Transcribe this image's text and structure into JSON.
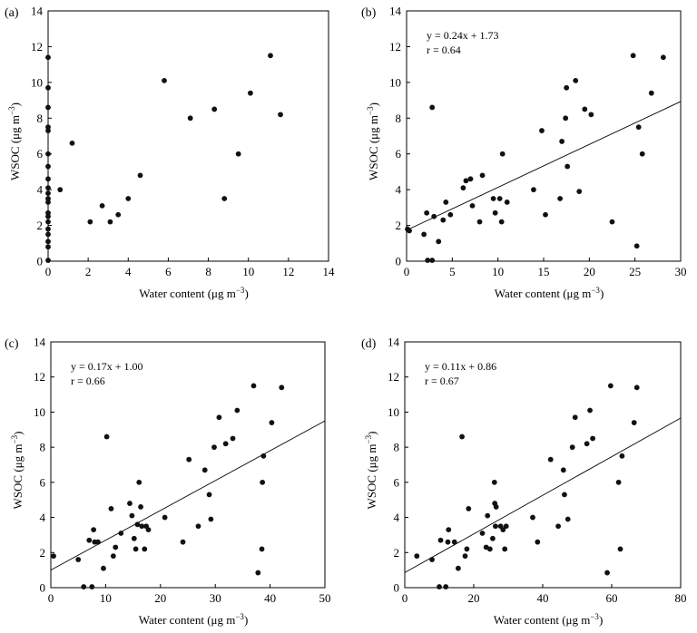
{
  "chart_data": [
    {
      "panel_label": "(a)",
      "type": "scatter",
      "xlabel": "Water content (μg m⁻³)",
      "ylabel": "WSOC (μg m⁻³)",
      "xlim": [
        0,
        14
      ],
      "ylim": [
        0,
        14
      ],
      "xticks": [
        0,
        2,
        4,
        6,
        8,
        10,
        12,
        14
      ],
      "yticks": [
        0,
        2,
        4,
        6,
        8,
        10,
        12,
        14
      ],
      "annotation": [],
      "regression": null,
      "points": [
        [
          0,
          11.4
        ],
        [
          0,
          9.7
        ],
        [
          0,
          8.6
        ],
        [
          0,
          7.5
        ],
        [
          0,
          7.3
        ],
        [
          0,
          6.0
        ],
        [
          0,
          5.3
        ],
        [
          0,
          4.6
        ],
        [
          0,
          4.1
        ],
        [
          0,
          3.8
        ],
        [
          0,
          3.5
        ],
        [
          0,
          3.3
        ],
        [
          0,
          2.7
        ],
        [
          0,
          2.5
        ],
        [
          0,
          2.2
        ],
        [
          0,
          1.8
        ],
        [
          0,
          1.5
        ],
        [
          0,
          1.1
        ],
        [
          0,
          0.8
        ],
        [
          0,
          0.05
        ],
        [
          0.6,
          4.0
        ],
        [
          1.2,
          6.6
        ],
        [
          2.1,
          2.2
        ],
        [
          2.7,
          3.1
        ],
        [
          3.1,
          2.2
        ],
        [
          3.5,
          2.6
        ],
        [
          4.0,
          3.5
        ],
        [
          4.6,
          4.8
        ],
        [
          5.8,
          10.1
        ],
        [
          7.1,
          8.0
        ],
        [
          8.3,
          8.5
        ],
        [
          8.8,
          3.5
        ],
        [
          9.5,
          6.0
        ],
        [
          10.1,
          9.4
        ],
        [
          11.1,
          11.5
        ],
        [
          11.6,
          8.2
        ]
      ]
    },
    {
      "panel_label": "(b)",
      "type": "scatter",
      "xlabel": "Water content (μg m⁻³)",
      "ylabel": "WSOC (μg m⁻³)",
      "xlim": [
        0,
        30
      ],
      "ylim": [
        0,
        14
      ],
      "xticks": [
        0,
        5,
        10,
        15,
        20,
        25,
        30
      ],
      "yticks": [
        0,
        2,
        4,
        6,
        8,
        10,
        12,
        14
      ],
      "annotation": [
        "y = 0.24x + 1.73",
        "r = 0.64"
      ],
      "regression": {
        "slope": 0.24,
        "intercept": 1.73
      },
      "points": [
        [
          0.1,
          1.8
        ],
        [
          0.3,
          1.7
        ],
        [
          1.9,
          1.5
        ],
        [
          2.2,
          2.7
        ],
        [
          2.3,
          0.05
        ],
        [
          2.8,
          0.05
        ],
        [
          2.8,
          8.6
        ],
        [
          3.0,
          2.5
        ],
        [
          3.5,
          1.1
        ],
        [
          4.0,
          2.3
        ],
        [
          4.3,
          3.3
        ],
        [
          4.8,
          2.6
        ],
        [
          6.2,
          4.1
        ],
        [
          6.5,
          4.5
        ],
        [
          7.0,
          4.6
        ],
        [
          7.2,
          3.1
        ],
        [
          8.0,
          2.2
        ],
        [
          8.3,
          4.8
        ],
        [
          9.5,
          3.5
        ],
        [
          9.7,
          2.7
        ],
        [
          10.2,
          3.5
        ],
        [
          10.4,
          2.2
        ],
        [
          10.5,
          6.0
        ],
        [
          11.0,
          3.3
        ],
        [
          13.9,
          4.0
        ],
        [
          14.8,
          7.3
        ],
        [
          15.2,
          2.6
        ],
        [
          16.8,
          3.5
        ],
        [
          17.0,
          6.7
        ],
        [
          17.4,
          8.0
        ],
        [
          17.5,
          9.7
        ],
        [
          17.6,
          5.3
        ],
        [
          18.5,
          10.1
        ],
        [
          18.9,
          3.9
        ],
        [
          19.5,
          8.5
        ],
        [
          20.2,
          8.2
        ],
        [
          22.5,
          2.2
        ],
        [
          24.8,
          11.5
        ],
        [
          25.2,
          0.85
        ],
        [
          25.4,
          7.5
        ],
        [
          25.8,
          6.0
        ],
        [
          26.8,
          9.4
        ],
        [
          28.1,
          11.4
        ]
      ]
    },
    {
      "panel_label": "(c)",
      "type": "scatter",
      "xlabel": "Water content (μg m⁻³)",
      "ylabel": "WSOC (μg m⁻³)",
      "xlim": [
        0,
        50
      ],
      "ylim": [
        0,
        14
      ],
      "xticks": [
        0,
        10,
        20,
        30,
        40,
        50
      ],
      "yticks": [
        0,
        2,
        4,
        6,
        8,
        10,
        12,
        14
      ],
      "annotation": [
        "y = 0.17x + 1.00",
        "r = 0.66"
      ],
      "regression": {
        "slope": 0.17,
        "intercept": 1.0
      },
      "points": [
        [
          0.5,
          1.8
        ],
        [
          5.0,
          1.6
        ],
        [
          6.0,
          0.05
        ],
        [
          7.0,
          2.7
        ],
        [
          7.5,
          0.05
        ],
        [
          7.8,
          3.3
        ],
        [
          8.0,
          2.6
        ],
        [
          8.6,
          2.6
        ],
        [
          9.6,
          1.1
        ],
        [
          10.2,
          8.6
        ],
        [
          11.0,
          4.5
        ],
        [
          11.4,
          1.8
        ],
        [
          11.8,
          2.3
        ],
        [
          12.8,
          3.1
        ],
        [
          14.4,
          4.8
        ],
        [
          14.8,
          4.1
        ],
        [
          15.2,
          2.8
        ],
        [
          15.5,
          2.2
        ],
        [
          15.8,
          3.6
        ],
        [
          16.1,
          6.0
        ],
        [
          16.4,
          4.6
        ],
        [
          16.6,
          3.5
        ],
        [
          17.1,
          2.2
        ],
        [
          17.4,
          3.5
        ],
        [
          17.8,
          3.3
        ],
        [
          20.8,
          4.0
        ],
        [
          24.1,
          2.6
        ],
        [
          25.2,
          7.3
        ],
        [
          26.9,
          3.5
        ],
        [
          28.1,
          6.7
        ],
        [
          28.9,
          5.3
        ],
        [
          29.2,
          3.9
        ],
        [
          29.8,
          8.0
        ],
        [
          30.7,
          9.7
        ],
        [
          31.9,
          8.2
        ],
        [
          33.2,
          8.5
        ],
        [
          34.0,
          10.1
        ],
        [
          37.0,
          11.5
        ],
        [
          37.8,
          0.85
        ],
        [
          38.5,
          2.2
        ],
        [
          38.6,
          6.0
        ],
        [
          38.8,
          7.5
        ],
        [
          40.3,
          9.4
        ],
        [
          42.1,
          11.4
        ]
      ]
    },
    {
      "panel_label": "(d)",
      "type": "scatter",
      "xlabel": "Water content (μg m⁻³)",
      "ylabel": "WSOC (μg m⁻³)",
      "xlim": [
        0,
        80
      ],
      "ylim": [
        0,
        14
      ],
      "xticks": [
        0,
        20,
        40,
        60,
        80
      ],
      "yticks": [
        0,
        2,
        4,
        6,
        8,
        10,
        12,
        14
      ],
      "annotation": [
        "y = 0.11x + 0.86",
        "r = 0.67"
      ],
      "regression": {
        "slope": 0.11,
        "intercept": 0.86
      },
      "points": [
        [
          3.5,
          1.8
        ],
        [
          7.9,
          1.6
        ],
        [
          10.0,
          0.05
        ],
        [
          10.4,
          2.7
        ],
        [
          11.9,
          0.05
        ],
        [
          12.5,
          2.6
        ],
        [
          12.7,
          3.3
        ],
        [
          14.4,
          2.6
        ],
        [
          15.5,
          1.1
        ],
        [
          16.6,
          8.6
        ],
        [
          17.5,
          1.8
        ],
        [
          18.0,
          2.2
        ],
        [
          18.5,
          4.5
        ],
        [
          22.5,
          3.1
        ],
        [
          23.6,
          2.3
        ],
        [
          24.0,
          4.1
        ],
        [
          24.7,
          2.2
        ],
        [
          25.5,
          2.8
        ],
        [
          26.0,
          6.0
        ],
        [
          26.1,
          4.8
        ],
        [
          26.3,
          3.5
        ],
        [
          26.5,
          4.6
        ],
        [
          27.8,
          3.5
        ],
        [
          28.5,
          3.3
        ],
        [
          29.0,
          2.2
        ],
        [
          29.4,
          3.5
        ],
        [
          37.1,
          4.0
        ],
        [
          38.5,
          2.6
        ],
        [
          42.3,
          7.3
        ],
        [
          44.5,
          3.5
        ],
        [
          46.0,
          6.7
        ],
        [
          46.3,
          5.3
        ],
        [
          47.3,
          3.9
        ],
        [
          48.6,
          8.0
        ],
        [
          49.4,
          9.7
        ],
        [
          52.8,
          8.2
        ],
        [
          53.7,
          10.1
        ],
        [
          54.5,
          8.5
        ],
        [
          58.7,
          0.85
        ],
        [
          59.7,
          11.5
        ],
        [
          62.0,
          6.0
        ],
        [
          62.5,
          2.2
        ],
        [
          63.0,
          7.5
        ],
        [
          66.5,
          9.4
        ],
        [
          67.3,
          11.4
        ]
      ]
    }
  ]
}
